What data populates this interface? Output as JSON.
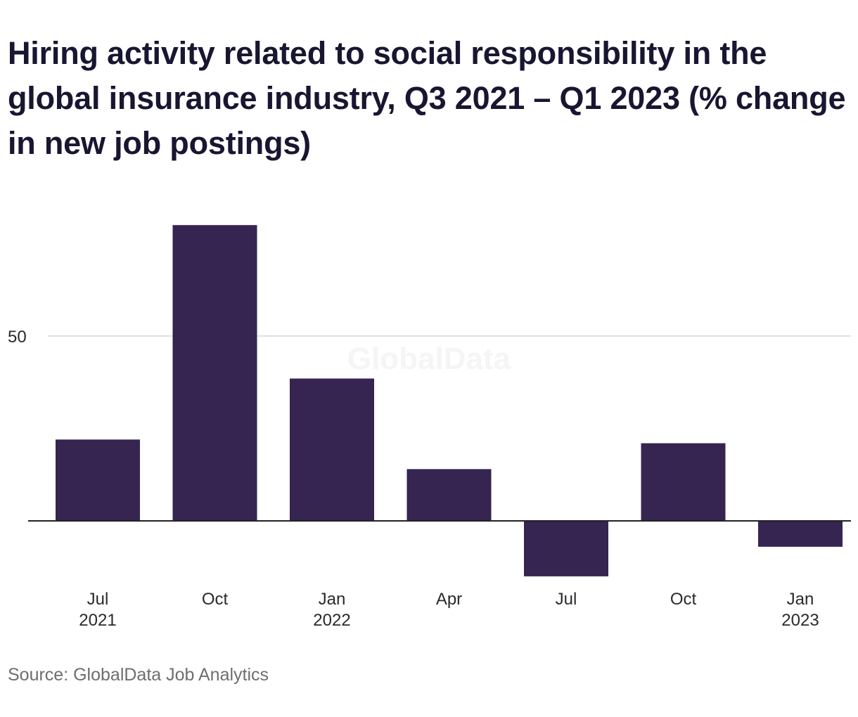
{
  "title": "Hiring activity related to social responsibility in the global insurance industry, Q3 2021 – Q1 2023 (% change in new job postings)",
  "source": "Source: GlobalData Job Analytics",
  "watermark": "GlobalData",
  "colors": {
    "bar": "#362451",
    "grid": "#d6d6d6",
    "baseline": "#222222",
    "tick_text": "#2a2a2a",
    "watermark": "#f5f5f5"
  },
  "chart_data": {
    "type": "bar",
    "categories": [
      "Jul 2021",
      "Oct",
      "Jan 2022",
      "Apr",
      "Jul",
      "Oct",
      "Jan 2023"
    ],
    "category_labels": [
      [
        "Jul",
        "2021"
      ],
      [
        "Oct",
        ""
      ],
      [
        "Jan",
        "2022"
      ],
      [
        "Apr",
        ""
      ],
      [
        "Jul",
        ""
      ],
      [
        "Oct",
        ""
      ],
      [
        "Jan",
        "2023"
      ]
    ],
    "values": [
      22,
      80,
      38.5,
      14,
      -15,
      21,
      -7
    ],
    "title": "Hiring activity related to social responsibility in the global insurance industry, Q3 2021 – Q1 2023 (% change in new job postings)",
    "xlabel": "",
    "ylabel": "",
    "ylim": [
      -20,
      85
    ],
    "yticks": [
      50
    ],
    "grid": true,
    "legend": "none"
  }
}
